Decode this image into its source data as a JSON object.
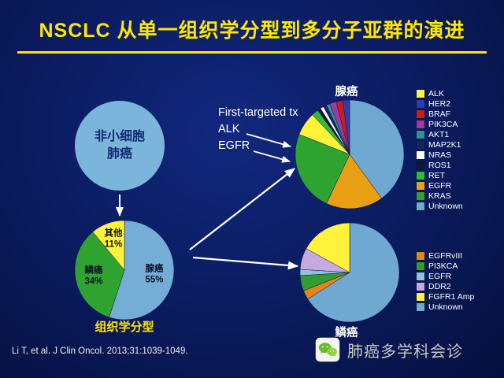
{
  "colors": {
    "background": "#0A1A5C",
    "title_yellow": "#FFE800",
    "arrow_white": "#FFFFFF"
  },
  "slide": {
    "title": "NSCLC 从单一组织学分型到多分子亚群的演进",
    "citation": "Li T, et al. J Clin Oncol. 2013;31:1039-1049.",
    "wechat_label": "肺癌多学科会诊",
    "wechat_icon": "wechat-logo"
  },
  "nsclc_circle": {
    "line1": "非小细胞",
    "line2": "肺癌"
  },
  "annotation": {
    "line1": "First-targeted tx",
    "line2": "ALK",
    "line3": "EGFR"
  },
  "chart_data": [
    {
      "type": "pie",
      "title": "组织学分型",
      "legend_position": "none",
      "slices": [
        {
          "label": "腺癌",
          "pct": "55%",
          "value": 55,
          "color": "#74AED6"
        },
        {
          "label": "鳞癌",
          "pct": "34%",
          "value": 34,
          "color": "#2FA32F"
        },
        {
          "label": "其他",
          "pct": "11%",
          "value": 11,
          "color": "#FFF23B"
        }
      ]
    },
    {
      "type": "pie",
      "title": "腺癌",
      "legend_position": "right",
      "slices": [
        {
          "label": "ALK",
          "value": 7,
          "color": "#FFF23B"
        },
        {
          "label": "HER2",
          "value": 2,
          "color": "#2B3FA8"
        },
        {
          "label": "BRAF",
          "value": 2,
          "color": "#C81E1E"
        },
        {
          "label": "PIK3CA",
          "value": 2,
          "color": "#A03A9E"
        },
        {
          "label": "AKT1",
          "value": 1,
          "color": "#2D9396"
        },
        {
          "label": "MAP2K1",
          "value": 1,
          "color": "#16265E"
        },
        {
          "label": "NRAS",
          "value": 1,
          "color": "#FFFFFF"
        },
        {
          "label": "ROS1",
          "value": 1,
          "color": "#10173F"
        },
        {
          "label": "RET",
          "value": 2,
          "color": "#2FBE2F"
        },
        {
          "label": "EGFR",
          "value": 17,
          "color": "#E8A013"
        },
        {
          "label": "KRAS",
          "value": 24,
          "color": "#2FA32F"
        },
        {
          "label": "Unknown",
          "value": 40,
          "color": "#6FA8D0"
        }
      ]
    },
    {
      "type": "pie",
      "title": "鳞癌",
      "legend_position": "right",
      "slices": [
        {
          "label": "EGFRvIII",
          "value": 3,
          "color": "#E8821A"
        },
        {
          "label": "PI3KCA",
          "value": 5,
          "color": "#2F9E2F"
        },
        {
          "label": "EGFR",
          "value": 2,
          "color": "#8FC1E0"
        },
        {
          "label": "DDR2",
          "value": 7,
          "color": "#C7A9E2"
        },
        {
          "label": "FGFR1 Amp",
          "value": 17,
          "color": "#FFF23B"
        },
        {
          "label": "Unknown",
          "value": 66,
          "color": "#6FA8D0"
        }
      ]
    }
  ]
}
